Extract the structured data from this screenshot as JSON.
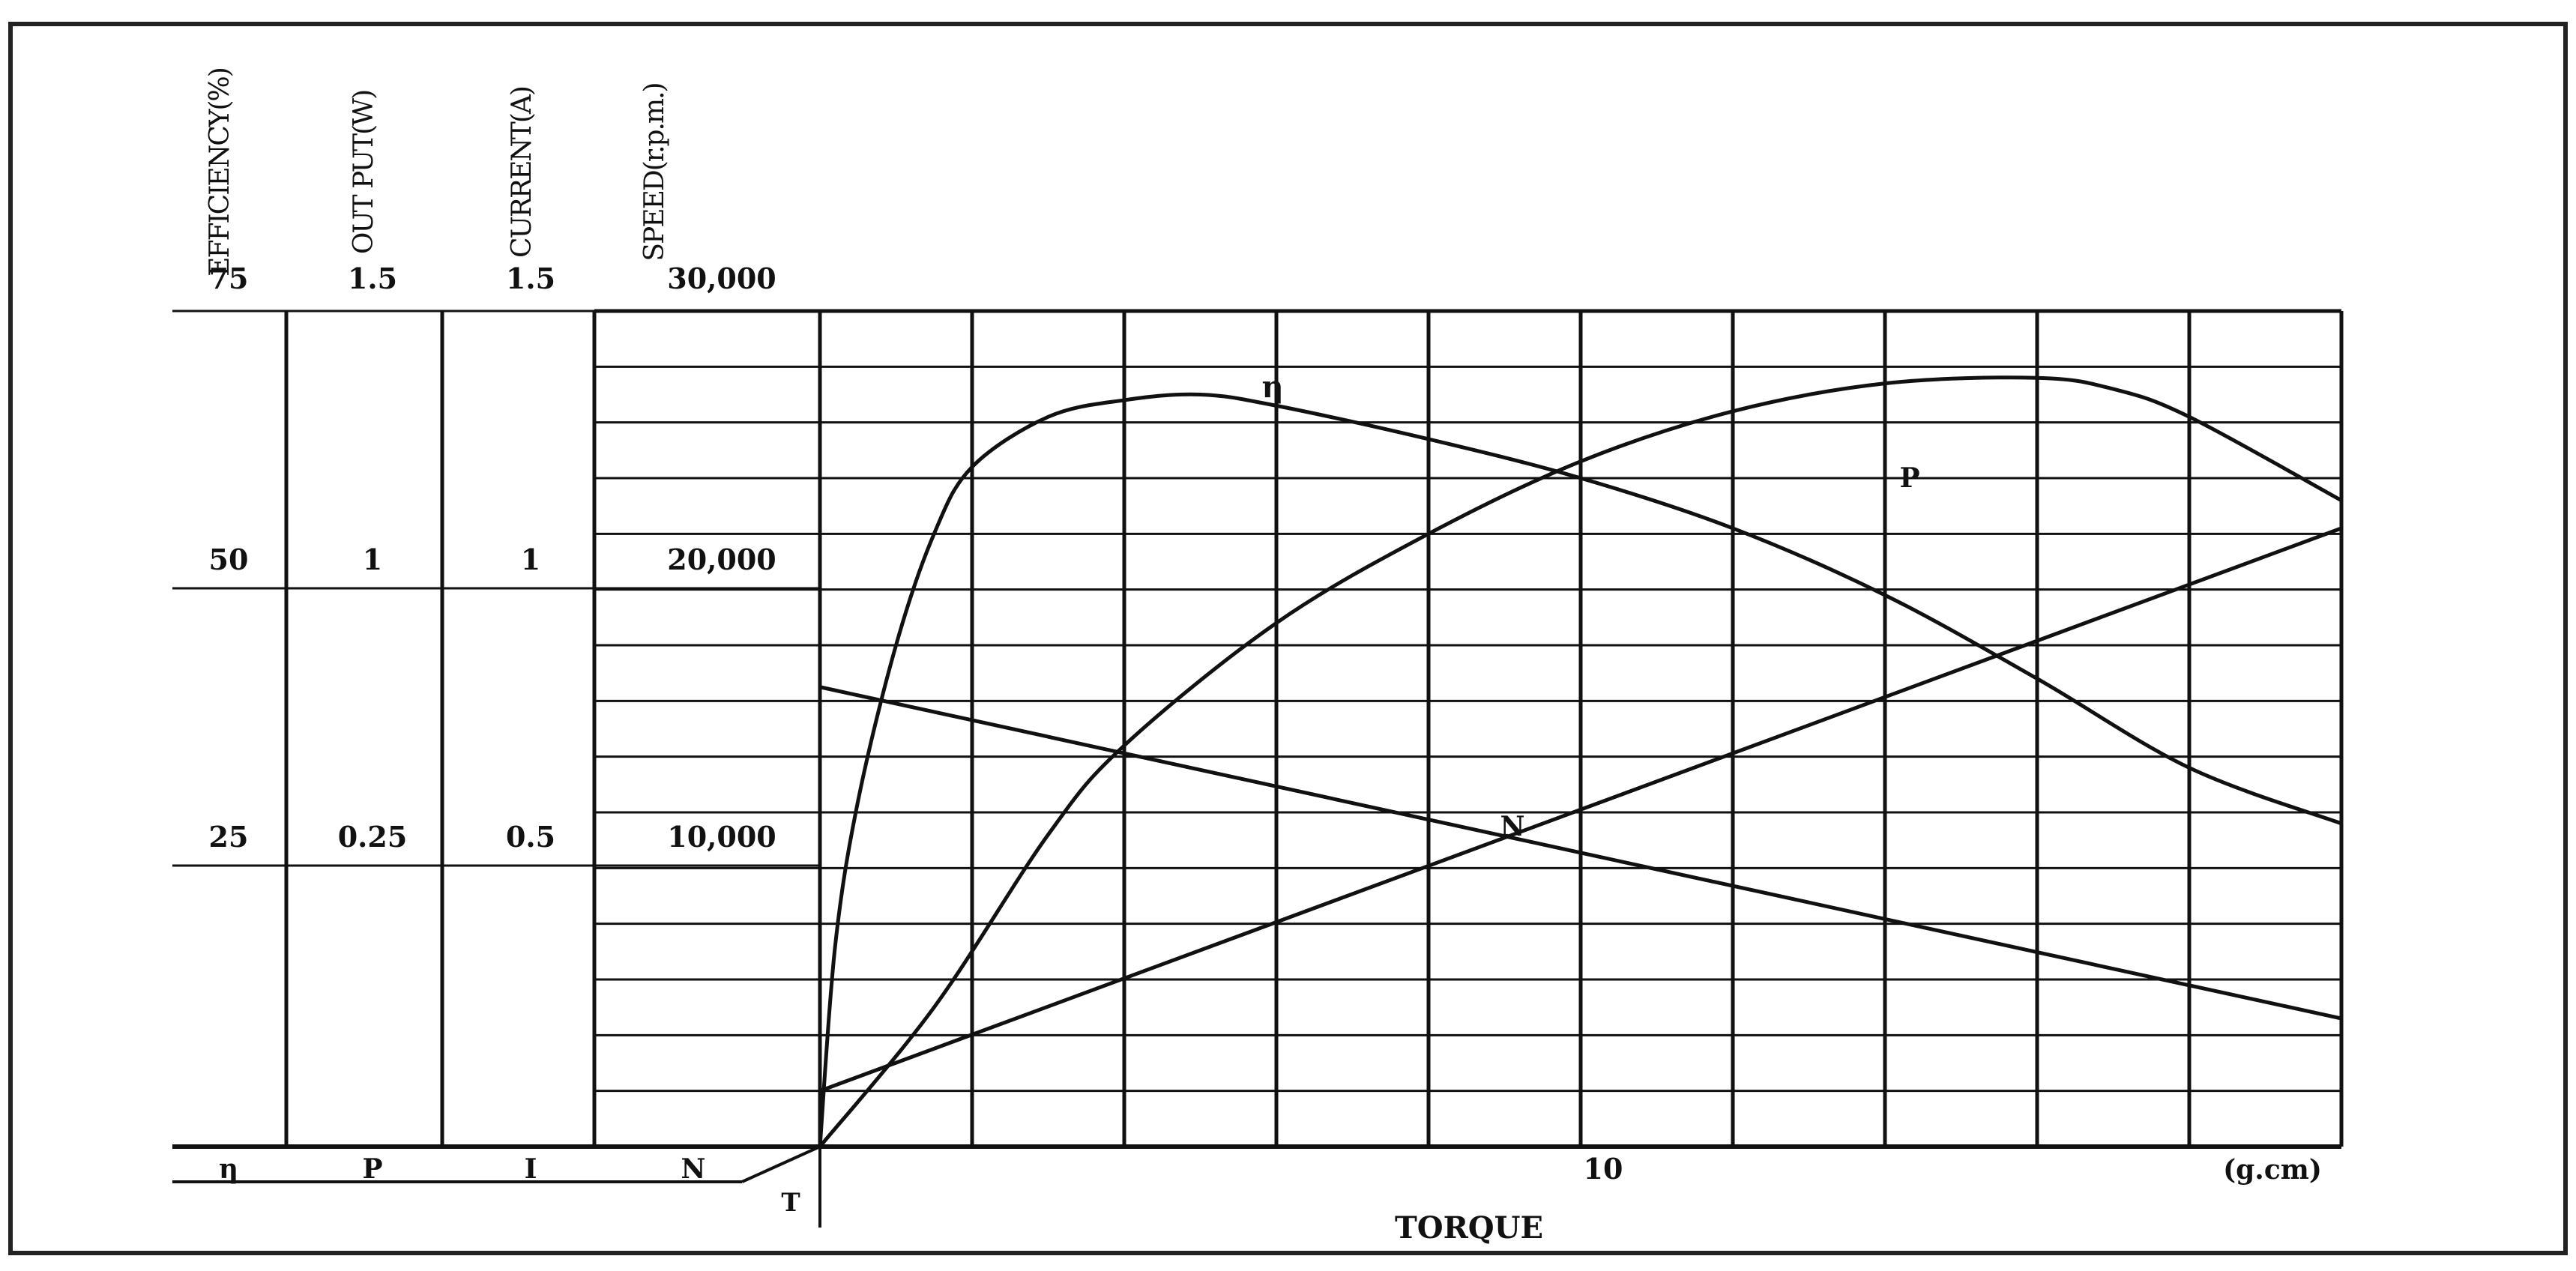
{
  "chart_data": {
    "type": "line",
    "xlabel": "TORQUE",
    "x_unit": "(g.cm)",
    "x_tick_label": "10",
    "x_origin_label": "T",
    "xlim": [
      0,
      20
    ],
    "axes": [
      {
        "name": "EFFICIENCY(%)",
        "symbol": "η",
        "ticks": [
          "75",
          "50",
          "25"
        ]
      },
      {
        "name": "OUT PUT(W)",
        "symbol": "P",
        "ticks": [
          "1.5",
          "1",
          "0.25"
        ]
      },
      {
        "name": "CURRENT(A)",
        "symbol": "I",
        "ticks": [
          "1.5",
          "1",
          "0.5"
        ]
      },
      {
        "name": "SPEED(r.p.m.)",
        "symbol": "N",
        "ticks": [
          "30,000",
          "20,000",
          "10,000"
        ]
      }
    ],
    "series": [
      {
        "name": "η",
        "axis": "EFFICIENCY(%)",
        "points": [
          [
            0,
            0
          ],
          [
            0.2,
            18
          ],
          [
            0.5,
            31
          ],
          [
            1,
            45
          ],
          [
            1.5,
            55
          ],
          [
            2,
            61
          ],
          [
            3,
            65.5
          ],
          [
            4,
            67
          ],
          [
            5,
            67.5
          ],
          [
            6,
            66.5
          ],
          [
            8,
            63.5
          ],
          [
            10,
            60
          ],
          [
            12,
            55.5
          ],
          [
            14,
            49.5
          ],
          [
            16,
            42
          ],
          [
            18,
            34
          ],
          [
            20,
            29
          ]
        ]
      },
      {
        "name": "P",
        "axis": "OUT PUT(W)",
        "points": [
          [
            0,
            0
          ],
          [
            1.5,
            0.25
          ],
          [
            3,
            0.56
          ],
          [
            4,
            0.72
          ],
          [
            6,
            0.94
          ],
          [
            8,
            1.1
          ],
          [
            10,
            1.23
          ],
          [
            12,
            1.32
          ],
          [
            14,
            1.37
          ],
          [
            16,
            1.38
          ],
          [
            17,
            1.36
          ],
          [
            18,
            1.31
          ],
          [
            20,
            1.16
          ]
        ]
      },
      {
        "name": "N",
        "axis": "SPEED(r.p.m.)",
        "points": [
          [
            0,
            16500
          ],
          [
            20,
            4600
          ]
        ]
      },
      {
        "name": "I",
        "axis": "CURRENT(A)",
        "points": [
          [
            0,
            0.1
          ],
          [
            20,
            1.11
          ]
        ]
      }
    ],
    "grid": true
  }
}
